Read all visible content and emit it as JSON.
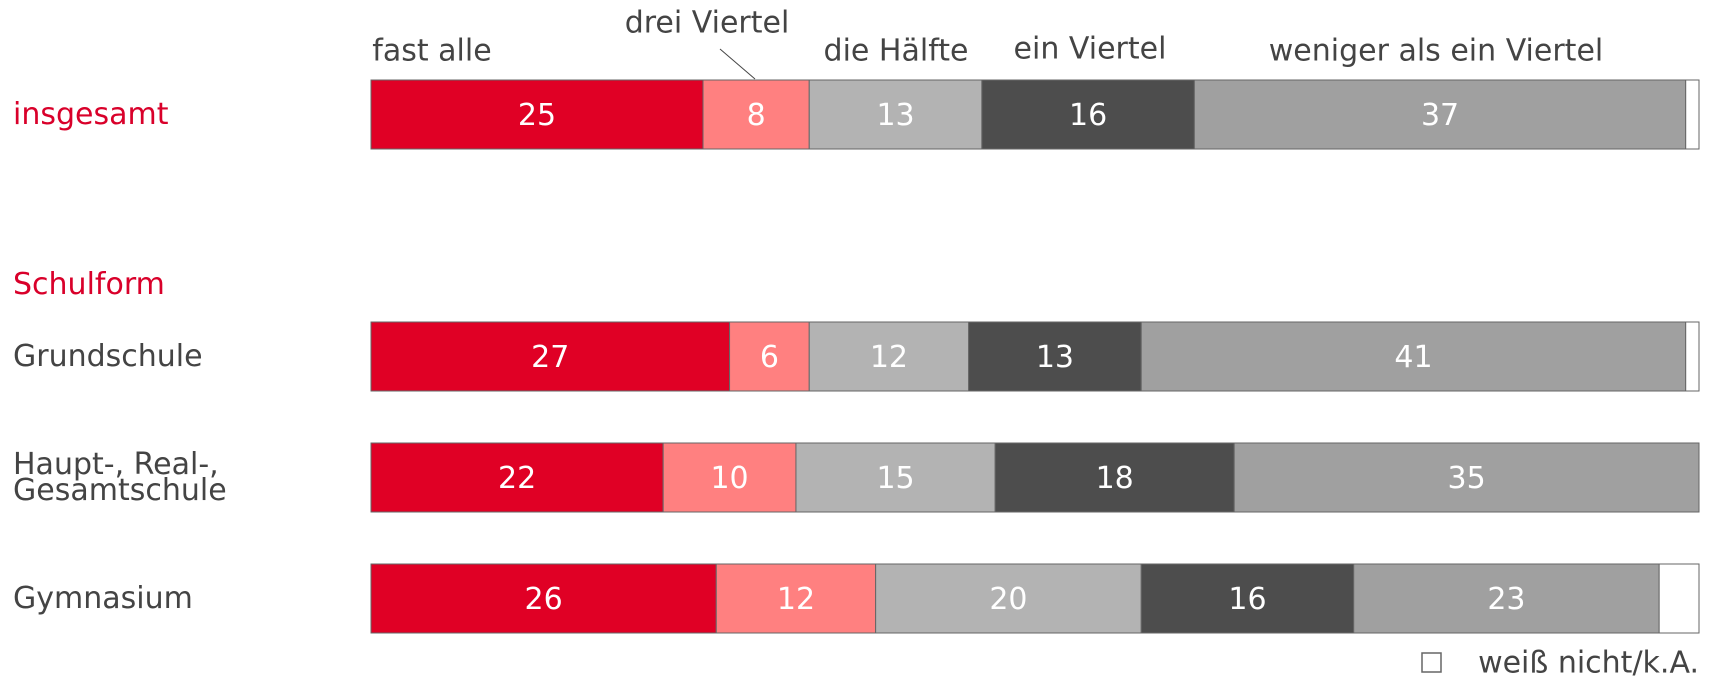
{
  "chart_data": {
    "type": "stacked_bar_horizontal",
    "categories": [
      "insgesamt",
      "Grundschule",
      "Haupt-, Real-,\nGesamtschule",
      "Gymnasium"
    ],
    "label_colors": [
      "#d9002a",
      "#444444",
      "#444444",
      "#444444"
    ],
    "group_label": "Schulform",
    "group_label_color": "#d9002a",
    "xlim": [
      0,
      100
    ],
    "series": [
      {
        "name": "fast alle",
        "color": "#e00025",
        "values": [
          25,
          27,
          22,
          26
        ]
      },
      {
        "name": "drei Viertel",
        "color": "#ff8080",
        "values": [
          8,
          6,
          10,
          12
        ]
      },
      {
        "name": "die Hälfte",
        "color": "#b3b3b3",
        "values": [
          13,
          12,
          15,
          20
        ]
      },
      {
        "name": "ein Viertel",
        "color": "#4d4d4d",
        "values": [
          16,
          13,
          18,
          16
        ]
      },
      {
        "name": "weniger als ein Viertel",
        "color": "#a0a0a0",
        "values": [
          37,
          41,
          35,
          23
        ]
      },
      {
        "name": "weiß nicht/k.A.",
        "color": "#ffffff",
        "values": [
          1,
          1,
          0,
          3
        ],
        "data_labels": false
      }
    ]
  }
}
